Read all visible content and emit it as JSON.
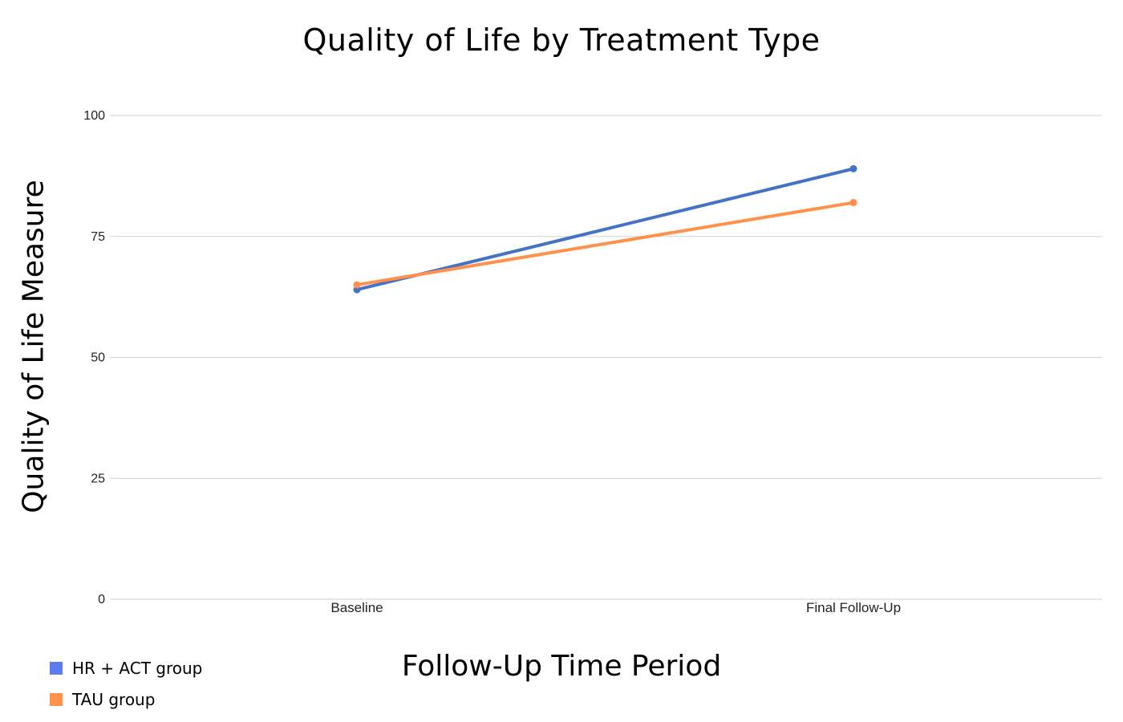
{
  "chart_data": {
    "type": "line",
    "title": "Quality of Life by Treatment Type",
    "xlabel": "Follow-Up Time Period",
    "ylabel": "Quality of Life Measure",
    "categories": [
      "Baseline",
      "Final Follow-Up"
    ],
    "ylim": [
      0,
      100
    ],
    "yticks": [
      "0",
      "25",
      "50",
      "75",
      "100"
    ],
    "grid": true,
    "legend_position": "bottom-left",
    "series": [
      {
        "name": "HR + ACT group",
        "values": [
          64,
          89
        ],
        "color": "#4472c4",
        "legend_color": "#5b7cf0"
      },
      {
        "name": "TAU group",
        "values": [
          65,
          82
        ],
        "color": "#ff914d",
        "legend_color": "#ff914d"
      }
    ]
  }
}
